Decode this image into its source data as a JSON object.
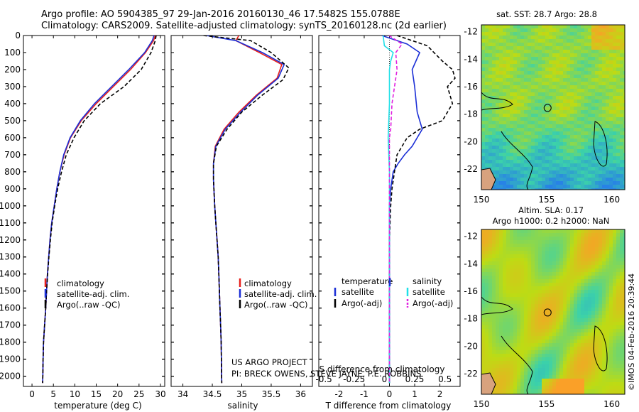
{
  "header": {
    "line1": "Argo profile: AO 5904385_97 29-Jan-2016 20160130_46 17.5482S 155.0788E",
    "line2": "Climatology: CARS2009. Satellite-adjusted climatology: synTS_20160128.nc (2d earlier)"
  },
  "colors": {
    "climatology": "#e8201c",
    "satellite": "#1b2fd6",
    "argo": "#000000",
    "sal_satellite": "#20e0e8",
    "sal_argo": "#e020e0"
  },
  "credit": {
    "project": "US ARGO PROJECT",
    "pi": "PI: BRECK OWENS, STEVE JAYNE, P.E. ROBBINS"
  },
  "side_label": "©IMOS 04-Feb-2016 20:39:44",
  "legend_profiles": [
    "climatology",
    "satellite-adj. clim.",
    "Argo(..raw -QC)"
  ],
  "legend_diff": {
    "temperature_title": "temperature",
    "salinity_title": "salinity",
    "satellite": "satellite",
    "argo": "Argo(-adj)"
  },
  "chart_data": [
    {
      "type": "line",
      "name": "temperature-profile",
      "xlabel": "temperature (deg C)",
      "ylabel": "depth",
      "xlim": [
        -2,
        31
      ],
      "ylim": [
        2060,
        0
      ],
      "xticks": [
        0,
        5,
        10,
        15,
        20,
        25,
        30
      ],
      "yticks": [
        0,
        100,
        200,
        300,
        400,
        500,
        600,
        700,
        800,
        900,
        1000,
        1100,
        1200,
        1300,
        1400,
        1500,
        1600,
        1700,
        1800,
        1900,
        2000
      ],
      "series": [
        {
          "name": "climatology",
          "style": "solid",
          "x": [
            28.8,
            28.4,
            26.5,
            23,
            19,
            15,
            11.5,
            9,
            7.5,
            6.5,
            5.8,
            5.2,
            4.6,
            4.2,
            3.9,
            3.6,
            3.4,
            3.2,
            2.95,
            2.7,
            2.6,
            2.5
          ],
          "y": [
            0,
            30,
            100,
            200,
            300,
            400,
            500,
            600,
            700,
            800,
            900,
            1000,
            1100,
            1200,
            1300,
            1400,
            1500,
            1600,
            1700,
            1800,
            1900,
            2040
          ]
        },
        {
          "name": "satellite-adj. clim.",
          "style": "solid",
          "x": [
            28.5,
            28.1,
            26.3,
            22.6,
            18.6,
            14.6,
            11.3,
            8.9,
            7.4,
            6.5,
            5.8,
            5.2,
            4.6,
            4.2,
            3.9,
            3.6,
            3.4,
            3.2,
            2.95,
            2.7,
            2.6,
            2.5
          ],
          "y": [
            0,
            30,
            100,
            200,
            300,
            400,
            500,
            600,
            700,
            800,
            900,
            1000,
            1100,
            1200,
            1300,
            1400,
            1500,
            1600,
            1700,
            1800,
            1900,
            2040
          ]
        },
        {
          "name": "Argo(..raw -QC)",
          "style": "dashed",
          "x": [
            29.0,
            28.8,
            27.8,
            25.5,
            21.5,
            16,
            12.2,
            9.8,
            8,
            6.9,
            6,
            5.3,
            4.7,
            4.3,
            3.95,
            3.65,
            3.4,
            3.2,
            2.95,
            2.7,
            2.6,
            2.5
          ],
          "y": [
            0,
            30,
            100,
            200,
            300,
            400,
            500,
            600,
            700,
            800,
            900,
            1000,
            1100,
            1200,
            1300,
            1400,
            1500,
            1600,
            1700,
            1800,
            1900,
            2040
          ]
        }
      ]
    },
    {
      "type": "line",
      "name": "salinity-profile",
      "xlabel": "salinity",
      "xlim": [
        33.8,
        36.2
      ],
      "ylim": [
        2060,
        0
      ],
      "xticks": [
        34,
        34.5,
        35,
        35.5,
        36
      ],
      "series": [
        {
          "name": "climatology",
          "style": "solid",
          "x": [
            34.95,
            34.9,
            35.3,
            35.68,
            35.6,
            35.25,
            34.95,
            34.7,
            34.55,
            34.52,
            34.52,
            34.54,
            34.56,
            34.58,
            34.6,
            34.61,
            34.62,
            34.63,
            34.64,
            34.65,
            34.66
          ],
          "y": [
            0,
            30,
            100,
            170,
            250,
            350,
            450,
            550,
            650,
            750,
            850,
            1000,
            1100,
            1200,
            1300,
            1400,
            1500,
            1600,
            1700,
            1800,
            2040
          ]
        },
        {
          "name": "satellite-adj. clim.",
          "style": "solid",
          "x": [
            34.4,
            34.9,
            35.35,
            35.72,
            35.62,
            35.27,
            34.98,
            34.72,
            34.56,
            34.52,
            34.52,
            34.54,
            34.56,
            34.58,
            34.6,
            34.61,
            34.62,
            34.63,
            34.64,
            34.65,
            34.66
          ],
          "y": [
            0,
            30,
            100,
            170,
            250,
            350,
            450,
            550,
            650,
            750,
            850,
            1000,
            1100,
            1200,
            1300,
            1400,
            1500,
            1600,
            1700,
            1800,
            2040
          ]
        },
        {
          "name": "Argo(..raw -QC)",
          "style": "dashed",
          "x": [
            34.35,
            35.15,
            35.5,
            35.8,
            35.7,
            35.35,
            35.0,
            34.75,
            34.57,
            34.52,
            34.52,
            34.54,
            34.56,
            34.58,
            34.6,
            34.61,
            34.62,
            34.63,
            34.64,
            34.65,
            34.66
          ],
          "y": [
            0,
            30,
            100,
            190,
            260,
            350,
            450,
            550,
            650,
            750,
            850,
            1000,
            1100,
            1200,
            1300,
            1400,
            1500,
            1600,
            1700,
            1800,
            2040
          ]
        }
      ]
    },
    {
      "type": "line",
      "name": "difference-from-climatology",
      "xlabel": "T difference from climatology",
      "xlabel_top": "S difference from climatology",
      "xlim": [
        -2.8,
        2.8
      ],
      "ylim": [
        2060,
        0
      ],
      "xticks": [
        -2,
        -1,
        0,
        1,
        2
      ],
      "xticks_top": [
        -0.5,
        -0.25,
        0,
        0.25,
        0.5
      ],
      "series": [
        {
          "name": "T satellite",
          "style": "solid",
          "x": [
            -0.3,
            0.7,
            1.2,
            0.9,
            1.0,
            1.1,
            1.3,
            0.9,
            0.6,
            0.35,
            0.15,
            0.05,
            0.0,
            0.0,
            0.0,
            0.0,
            0.0
          ],
          "y": [
            0,
            50,
            100,
            200,
            300,
            450,
            550,
            650,
            700,
            750,
            800,
            900,
            1000,
            1200,
            1400,
            1700,
            2040
          ]
        },
        {
          "name": "T Argo(-adj)",
          "style": "dashed",
          "x": [
            0.3,
            1.5,
            2.1,
            2.5,
            2.6,
            2.3,
            2.5,
            2.1,
            1.2,
            0.7,
            0.5,
            0.3,
            0.2,
            0.1,
            0.05,
            0.0,
            0.0
          ],
          "y": [
            0,
            60,
            150,
            200,
            250,
            300,
            400,
            500,
            550,
            600,
            650,
            700,
            800,
            900,
            1000,
            1200,
            2040
          ]
        },
        {
          "name": "S satellite",
          "style": "solid",
          "x": [
            -0.25,
            -0.2,
            0.15,
            0.05,
            0.0,
            0.0,
            -0.05,
            0.0,
            0.0,
            0.0,
            0.0,
            0.0,
            0.0
          ],
          "y": [
            0,
            60,
            100,
            150,
            200,
            400,
            600,
            800,
            1000,
            1200,
            1300,
            1600,
            2040
          ]
        },
        {
          "name": "S Argo(-adj)",
          "style": "dashed",
          "x": [
            -0.02,
            0.5,
            0.25,
            0.3,
            0.1,
            0.05,
            0.0,
            0.0,
            0.0,
            0.0
          ],
          "y": [
            0,
            50,
            100,
            200,
            400,
            550,
            600,
            800,
            1000,
            2040
          ]
        }
      ]
    },
    {
      "type": "heatmap",
      "name": "sat-sst-map",
      "title": "sat. SST: 28.7  Argo: 28.8",
      "xlim": [
        150,
        161
      ],
      "ylim": [
        -23.5,
        -11.5
      ],
      "xticks": [
        150,
        155,
        160
      ],
      "yticks": [
        -12,
        -14,
        -16,
        -18,
        -20,
        -22
      ],
      "marker": {
        "lon": 155.0788,
        "lat": -17.5482
      }
    },
    {
      "type": "heatmap",
      "name": "altim-sla-map",
      "title": "Altim. SLA: 0.17",
      "subtitle": "Argo h1000: 0.2 h2000: NaN",
      "xlim": [
        150,
        161
      ],
      "ylim": [
        -23.5,
        -11.5
      ],
      "xticks": [
        150,
        155,
        160
      ],
      "yticks": [
        -12,
        -14,
        -16,
        -18,
        -20,
        -22
      ],
      "marker": {
        "lon": 155.0788,
        "lat": -17.5482
      }
    }
  ]
}
